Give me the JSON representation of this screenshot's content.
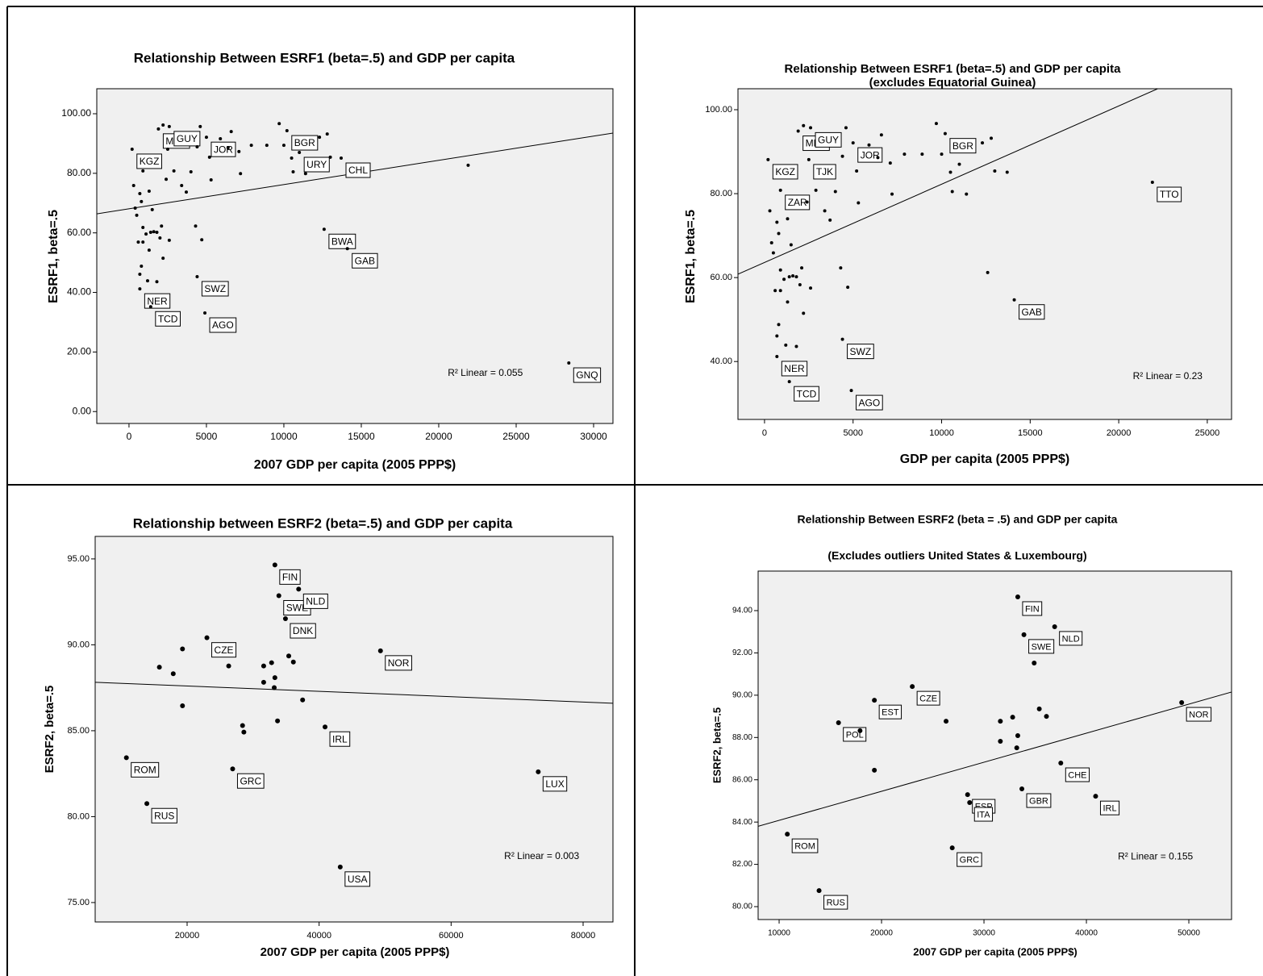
{
  "chart_data": [
    {
      "type": "scatter",
      "title": "Relationship Between ESRF1 (beta=.5) and GDP per capita",
      "x_label": "2007 GDP per capita (2005 PPP$)",
      "y_label": "ESRF1, beta=.5",
      "color": "#000000",
      "x": [
        200,
        300,
        400,
        500,
        700,
        900,
        1300,
        1500,
        1900,
        2200,
        2600,
        2500,
        2400,
        2900,
        3400,
        3700,
        4000,
        4400,
        4600,
        5000,
        5200,
        5300,
        5900,
        6400,
        6600,
        7100,
        7200,
        7900,
        8900,
        9700,
        10200,
        10000,
        10500,
        10600,
        11000,
        11400,
        12300,
        12800,
        13000,
        13700,
        12600,
        800,
        900,
        900,
        1100,
        1400,
        1600,
        1800,
        2000,
        2200,
        2600,
        4300,
        4700,
        4400,
        800,
        700,
        700,
        1200,
        1800,
        1400,
        4900,
        14100,
        21900,
        28400,
        600,
        2100,
        1300
      ],
      "y": [
        88.1,
        75.9,
        68.3,
        65.9,
        73.2,
        80.8,
        74.0,
        67.8,
        94.9,
        96.2,
        95.7,
        88.1,
        78.0,
        80.8,
        75.9,
        73.7,
        80.5,
        88.9,
        95.7,
        92.1,
        85.4,
        77.8,
        91.6,
        88.6,
        94.0,
        87.3,
        79.9,
        89.4,
        89.4,
        96.7,
        94.3,
        89.4,
        85.1,
        80.5,
        87.0,
        79.9,
        92.1,
        93.2,
        85.4,
        85.1,
        61.2,
        70.5,
        61.8,
        56.9,
        59.6,
        60.2,
        60.4,
        60.2,
        58.3,
        51.5,
        57.5,
        62.3,
        57.7,
        45.3,
        48.8,
        46.1,
        41.2,
        43.9,
        43.6,
        35.2,
        33.1,
        54.7,
        82.7,
        16.3,
        56.9,
        62.3,
        54.2
      ],
      "point_labels": [
        "KGZ",
        null,
        null,
        null,
        null,
        null,
        null,
        null,
        "MDA",
        null,
        "GUY",
        null,
        null,
        null,
        null,
        null,
        null,
        null,
        null,
        "JOR",
        null,
        null,
        null,
        null,
        null,
        null,
        null,
        null,
        null,
        null,
        "BGR",
        null,
        null,
        null,
        "URY",
        null,
        null,
        null,
        null,
        "CHL",
        "BWA",
        null,
        null,
        null,
        null,
        null,
        null,
        null,
        null,
        null,
        null,
        null,
        null,
        "SWZ",
        null,
        null,
        "NER",
        null,
        null,
        "TCD",
        "AGO",
        "GAB",
        null,
        "GNQ",
        null,
        null,
        null
      ],
      "xlim": [
        -2080,
        31250
      ],
      "ylim": [
        -4,
        108.4
      ],
      "xticks": [
        0,
        5000,
        10000,
        15000,
        20000,
        25000,
        30000
      ],
      "yticks": [
        {
          "value": 0,
          "label": "0.00"
        },
        {
          "value": 20,
          "label": "20.00"
        },
        {
          "value": 40,
          "label": "40.00"
        },
        {
          "value": 60,
          "label": "60.00"
        },
        {
          "value": 80,
          "label": "80.00"
        },
        {
          "value": 100,
          "label": "100.00"
        }
      ],
      "fit_line": {
        "x": [
          -2080,
          31250
        ],
        "y": [
          66.4,
          93.5
        ]
      },
      "annotation": "R² Linear = 0.055"
    },
    {
      "type": "scatter",
      "title": "Relationship Between ESRF1 (beta=.5) and GDP per capita",
      "subtitle": "(excludes Equatorial Guinea)",
      "x_label": "GDP per capita (2005 PPP$)",
      "y_label": "ESRF1, beta=.5",
      "color": "#000000",
      "x": [
        200,
        300,
        400,
        500,
        700,
        900,
        1300,
        1500,
        1900,
        2200,
        2600,
        2500,
        2400,
        2900,
        3400,
        3700,
        4000,
        4400,
        4600,
        5000,
        5200,
        5300,
        5900,
        6400,
        6600,
        7100,
        7200,
        7900,
        8900,
        9700,
        10200,
        10000,
        10500,
        10600,
        11000,
        11400,
        12300,
        12800,
        13000,
        13700,
        12600,
        800,
        900,
        900,
        1100,
        1400,
        1600,
        1800,
        2000,
        2200,
        2600,
        4300,
        4700,
        4400,
        800,
        700,
        700,
        1200,
        1800,
        1400,
        4900,
        14100,
        21900,
        600,
        2100,
        1300
      ],
      "y": [
        88.1,
        75.9,
        68.3,
        65.9,
        73.2,
        80.8,
        74.0,
        67.8,
        94.9,
        96.2,
        95.7,
        88.1,
        78.0,
        80.8,
        75.9,
        73.7,
        80.5,
        88.9,
        95.7,
        92.1,
        85.4,
        77.8,
        91.6,
        88.6,
        94.0,
        87.3,
        79.9,
        89.4,
        89.4,
        96.7,
        94.3,
        89.4,
        85.1,
        80.5,
        87.0,
        79.9,
        92.1,
        93.2,
        85.4,
        85.1,
        61.2,
        70.5,
        61.8,
        56.9,
        59.6,
        60.2,
        60.4,
        60.2,
        58.3,
        51.5,
        57.5,
        62.3,
        57.7,
        45.3,
        48.8,
        46.1,
        41.2,
        43.9,
        43.6,
        35.2,
        33.1,
        54.7,
        82.7,
        56.9,
        62.3,
        54.2
      ],
      "point_labels": [
        "KGZ",
        null,
        null,
        null,
        null,
        "ZAR",
        null,
        null,
        "MDA",
        null,
        "GUY",
        "TJK",
        null,
        null,
        null,
        null,
        null,
        null,
        null,
        "JOR",
        null,
        null,
        null,
        null,
        null,
        null,
        null,
        null,
        null,
        null,
        "BGR",
        null,
        null,
        null,
        null,
        null,
        null,
        null,
        null,
        null,
        null,
        null,
        null,
        null,
        null,
        null,
        null,
        null,
        null,
        null,
        null,
        null,
        null,
        "SWZ",
        null,
        null,
        "NER",
        null,
        null,
        "TCD",
        "AGO",
        "GAB",
        "TTO",
        null,
        null,
        null
      ],
      "xlim": [
        -1500,
        26370
      ],
      "ylim": [
        26.2,
        105
      ],
      "xticks": [
        0,
        5000,
        10000,
        15000,
        20000,
        25000
      ],
      "yticks": [
        {
          "value": 40,
          "label": "40.00"
        },
        {
          "value": 60,
          "label": "60.00"
        },
        {
          "value": 80,
          "label": "80.00"
        },
        {
          "value": 100,
          "label": "100.00"
        }
      ],
      "fit_line": {
        "x": [
          -1500,
          22200
        ],
        "y": [
          60.8,
          105
        ]
      },
      "annotation": "R² Linear = 0.23"
    },
    {
      "type": "scatter",
      "title": "Relationship between ESRF2 (beta=.5) and GDP per capita",
      "x_label": "2007 GDP per capita (2005 PPP$)",
      "y_label": "ESRF2, beta=.5",
      "color": "#000000",
      "x": [
        33300,
        33900,
        36900,
        34900,
        23000,
        19300,
        15800,
        17900,
        19300,
        26300,
        31600,
        32800,
        31600,
        33300,
        33200,
        35400,
        36100,
        37500,
        49300,
        28400,
        28600,
        33700,
        40900,
        26900,
        10800,
        13900,
        73200,
        43200
      ],
      "y": [
        94.65,
        92.86,
        93.24,
        91.52,
        90.41,
        89.76,
        88.7,
        88.32,
        86.45,
        88.77,
        88.77,
        88.96,
        87.82,
        88.09,
        87.51,
        89.35,
        89.0,
        86.79,
        89.65,
        85.3,
        84.92,
        85.57,
        85.22,
        82.78,
        83.43,
        80.76,
        82.61,
        77.07
      ],
      "point_labels": [
        "FIN",
        "SWE",
        "NLD",
        "DNK",
        "CZE",
        null,
        null,
        null,
        null,
        null,
        null,
        null,
        null,
        null,
        null,
        null,
        null,
        null,
        "NOR",
        null,
        null,
        null,
        "IRL",
        "GRC",
        "ROM",
        "RUS",
        "LUX",
        "USA"
      ],
      "xlim": [
        6070,
        84520
      ],
      "ylim": [
        73.87,
        96.31
      ],
      "xticks": [
        20000,
        40000,
        60000,
        80000
      ],
      "yticks": [
        {
          "value": 75,
          "label": "75.00"
        },
        {
          "value": 80,
          "label": "80.00"
        },
        {
          "value": 85,
          "label": "85.00"
        },
        {
          "value": 90,
          "label": "90.00"
        },
        {
          "value": 95,
          "label": "95.00"
        }
      ],
      "fit_line": {
        "x": [
          6070,
          84520
        ],
        "y": [
          87.82,
          86.6
        ]
      },
      "annotation": "R² Linear = 0.003"
    },
    {
      "type": "scatter",
      "title": "Relationship Between ESRF2 (beta = .5) and GDP per capita",
      "subtitle": "(Excludes outliers United States & Luxembourg)",
      "x_label": "2007 GDP per capita (2005 PPP$)",
      "y_label": "ESRF2, beta=.5",
      "color": "#000000",
      "x": [
        33300,
        33900,
        36900,
        34900,
        23000,
        19300,
        15800,
        17900,
        19300,
        26300,
        31600,
        32800,
        31600,
        33300,
        33200,
        35400,
        36100,
        37500,
        49300,
        28400,
        28600,
        33700,
        40900,
        26900,
        10800,
        13900
      ],
      "y": [
        94.65,
        92.86,
        93.24,
        91.52,
        90.41,
        89.76,
        88.7,
        88.32,
        86.45,
        88.77,
        88.77,
        88.96,
        87.82,
        88.09,
        87.51,
        89.35,
        89.0,
        86.79,
        89.65,
        85.3,
        84.92,
        85.57,
        85.22,
        82.78,
        83.43,
        80.76
      ],
      "point_labels": [
        "FIN",
        "SWE",
        "NLD",
        null,
        "CZE",
        "EST",
        "POL",
        null,
        null,
        null,
        null,
        null,
        null,
        null,
        null,
        null,
        null,
        "CHE",
        "NOR",
        "ESP",
        "ITA",
        "GBR",
        "IRL",
        "GRC",
        "ROM",
        "RUS"
      ],
      "xlim": [
        7950,
        54170
      ],
      "ylim": [
        79.39,
        95.87
      ],
      "xticks": [
        10000,
        20000,
        30000,
        40000,
        50000
      ],
      "yticks": [
        {
          "value": 80,
          "label": "80.00"
        },
        {
          "value": 82,
          "label": "82.00"
        },
        {
          "value": 84,
          "label": "84.00"
        },
        {
          "value": 86,
          "label": "86.00"
        },
        {
          "value": 88,
          "label": "88.00"
        },
        {
          "value": 90,
          "label": "90.00"
        },
        {
          "value": 92,
          "label": "92.00"
        },
        {
          "value": 94,
          "label": "94.00"
        }
      ],
      "fit_line": {
        "x": [
          7950,
          54170
        ],
        "y": [
          83.8,
          90.15
        ]
      },
      "annotation": "R² Linear = 0.155"
    }
  ]
}
